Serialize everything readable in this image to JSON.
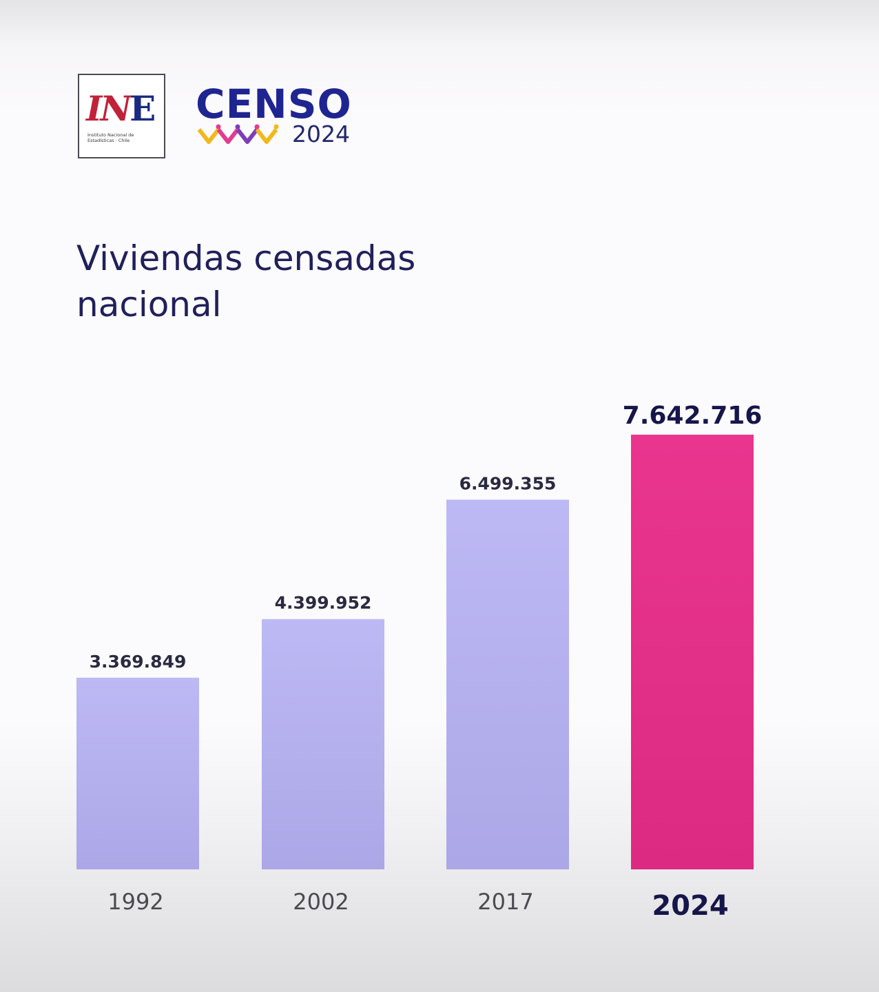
{
  "header": {
    "ine_logo": {
      "mark": "INE",
      "subtitle": "Instituto Nacional de\nEstadísticas · Chile"
    },
    "censo_logo": {
      "word": "CENSO",
      "year": "2024"
    }
  },
  "chart_data": {
    "type": "bar",
    "title_lines": [
      "Viviendas censadas",
      "nacional"
    ],
    "categories": [
      "1992",
      "2002",
      "2017",
      "2024"
    ],
    "values": [
      3369849,
      4399952,
      6499355,
      7642716
    ],
    "value_labels": [
      "3.369.849",
      "4.399.952",
      "6.499.355",
      "7.642.716"
    ],
    "highlight_index": 3,
    "colors": {
      "bar": "#bdb9f5",
      "bar_bottom": "#aca7e6",
      "highlight": "#e9358e",
      "highlight_bottom": "#dc2a82",
      "text": "#2a2a40",
      "year": "#4a4a52"
    },
    "grid": false,
    "legend": "none"
  }
}
